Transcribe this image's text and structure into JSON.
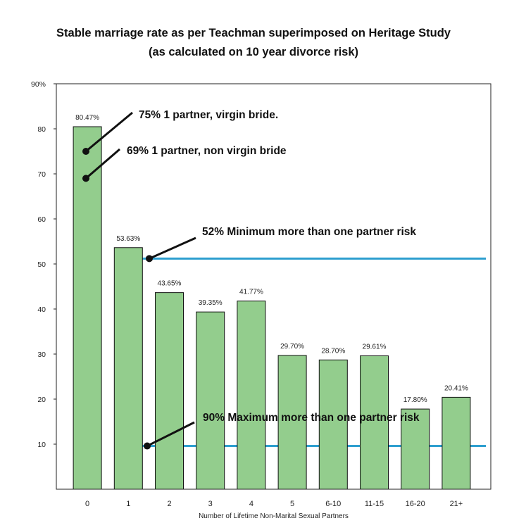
{
  "title_lines": [
    "Stable marriage rate as per Teachman superimposed on Heritage Study",
    "(as calculated on 10 year divorce risk)"
  ],
  "chart_data": {
    "type": "bar",
    "title": "Stable marriage rate as per Teachman superimposed on Heritage Study (as calculated on 10 year divorce risk)",
    "xlabel": "Number of Lifetime Non-Marital Sexual Partners",
    "ylabel": "",
    "ylim": [
      0,
      90
    ],
    "yticks": [
      10,
      20,
      30,
      40,
      50,
      60,
      70,
      80,
      90
    ],
    "ytick_labels": [
      "10",
      "20",
      "30",
      "40",
      "50",
      "60",
      "70",
      "80",
      "90%"
    ],
    "categories": [
      "0",
      "1",
      "2",
      "3",
      "4",
      "5",
      "6-10",
      "11-15",
      "16-20",
      "21+"
    ],
    "values": [
      80.47,
      53.63,
      43.65,
      39.35,
      41.77,
      29.7,
      28.7,
      29.61,
      17.8,
      20.41
    ],
    "value_labels": [
      "80.47%",
      "53.63%",
      "43.65%",
      "39.35%",
      "41.77%",
      "29.70%",
      "28.70%",
      "29.61%",
      "17.80%",
      "20.41%"
    ],
    "grid": false,
    "bar_color": "#93cd8d",
    "bar_edge_color": "#111111",
    "reference_lines": [
      {
        "value": 51.2,
        "x_start_category": "1",
        "color": "#2e9fcf"
      },
      {
        "value": 9.6,
        "x_start_category": "1",
        "color": "#2e9fcf"
      }
    ],
    "annotations": [
      {
        "text": "75% 1 partner, virgin bride.",
        "value": 75,
        "category": "0"
      },
      {
        "text": "69%  1 partner, non virgin bride",
        "value": 69,
        "category": "0"
      },
      {
        "text": "52% Minimum more than one partner risk",
        "value": 51.2,
        "category": "1"
      },
      {
        "text": "90% Maximum more than one partner risk",
        "value": 9.6,
        "category": "1"
      }
    ]
  }
}
